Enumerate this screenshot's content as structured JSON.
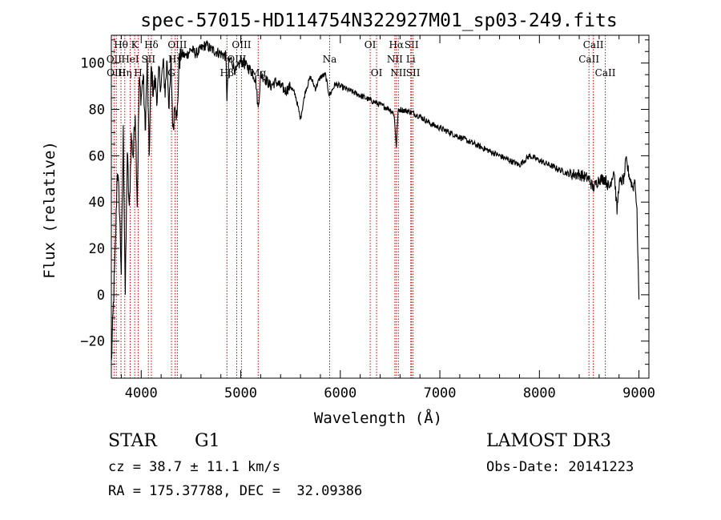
{
  "chart_data": {
    "type": "line",
    "title": "spec-57015-HD114754N322927M01_sp03-249.fits",
    "xlabel": "Wavelength (Å)",
    "ylabel": "Flux (relative)",
    "xlim": [
      3700,
      9100
    ],
    "ylim": [
      -36,
      112
    ],
    "x_ticks": [
      4000,
      5000,
      6000,
      7000,
      8000,
      9000
    ],
    "y_ticks": [
      -20,
      0,
      20,
      40,
      60,
      80,
      100
    ],
    "line_color": "#000000",
    "marker_color": "#cc0000",
    "series": [
      {
        "name": "flux",
        "x": [
          3700,
          3720,
          3740,
          3760,
          3780,
          3800,
          3820,
          3840,
          3860,
          3880,
          3900,
          3920,
          3940,
          3960,
          3980,
          4000,
          4020,
          4040,
          4060,
          4080,
          4100,
          4120,
          4140,
          4160,
          4180,
          4200,
          4220,
          4240,
          4260,
          4280,
          4300,
          4320,
          4340,
          4360,
          4380,
          4400,
          4450,
          4500,
          4550,
          4600,
          4650,
          4700,
          4750,
          4800,
          4850,
          4861,
          4880,
          4900,
          4950,
          5000,
          5050,
          5100,
          5150,
          5175,
          5200,
          5250,
          5300,
          5350,
          5400,
          5450,
          5500,
          5550,
          5600,
          5650,
          5700,
          5750,
          5800,
          5850,
          5890,
          5950,
          6000,
          6100,
          6200,
          6300,
          6400,
          6500,
          6540,
          6563,
          6580,
          6600,
          6700,
          6800,
          6900,
          7000,
          7100,
          7200,
          7300,
          7400,
          7500,
          7600,
          7700,
          7800,
          7900,
          8000,
          8100,
          8200,
          8300,
          8400,
          8500,
          8540,
          8600,
          8662,
          8700,
          8750,
          8780,
          8800,
          8850,
          8870,
          8900,
          8940,
          8960,
          8980,
          9000
        ],
        "y": [
          -30,
          -5,
          20,
          55,
          40,
          10,
          70,
          0,
          62,
          35,
          68,
          60,
          80,
          40,
          92,
          85,
          95,
          70,
          100,
          60,
          98,
          88,
          92,
          85,
          96,
          90,
          100,
          88,
          102,
          80,
          100,
          70,
          85,
          75,
          100,
          104,
          103,
          106,
          104,
          106,
          108,
          106,
          105,
          104,
          103,
          85,
          100,
          102,
          96,
          101,
          99,
          97,
          93,
          80,
          95,
          93,
          90,
          92,
          90,
          88,
          90,
          86,
          76,
          88,
          94,
          89,
          94,
          95,
          86,
          91,
          90,
          88,
          86,
          84,
          82,
          80,
          78,
          64,
          79,
          80,
          79,
          77,
          74,
          72,
          70,
          68,
          66,
          64,
          62,
          60,
          58,
          56,
          60,
          58,
          56,
          54,
          52,
          52,
          50,
          46,
          50,
          50,
          46,
          54,
          36,
          48,
          50,
          58,
          52,
          46,
          50,
          35,
          -2
        ]
      }
    ],
    "line_markers": [
      {
        "label": "Hθ",
        "x": 3797,
        "row": 0
      },
      {
        "label": "OII",
        "x": 3727,
        "row": 1
      },
      {
        "label": "OIII",
        "x": 3750,
        "row": 2
      },
      {
        "label": "K",
        "x": 3934,
        "row": 0
      },
      {
        "label": "HeI",
        "x": 3889,
        "row": 1
      },
      {
        "label": "Hη",
        "x": 3835,
        "row": 2
      },
      {
        "label": "H",
        "x": 3969,
        "row": 2
      },
      {
        "label": "Hδ",
        "x": 4102,
        "row": 0
      },
      {
        "label": "SII",
        "x": 4072,
        "row": 1
      },
      {
        "label": "OIII",
        "x": 4363,
        "row": 0
      },
      {
        "label": "Hγ",
        "x": 4341,
        "row": 1
      },
      {
        "label": "G",
        "x": 4304,
        "row": 2
      },
      {
        "label": "OIII",
        "x": 5007,
        "row": 0
      },
      {
        "label": "OIII",
        "x": 4959,
        "row": 1
      },
      {
        "label": "Hβ",
        "x": 4861,
        "row": 2
      },
      {
        "label": "Mg",
        "x": 5175,
        "row": 2
      },
      {
        "label": "Na",
        "x": 5893,
        "row": 1
      },
      {
        "label": "OI",
        "x": 6300,
        "row": 0
      },
      {
        "label": "OI",
        "x": 6364,
        "row": 2
      },
      {
        "label": "Hα",
        "x": 6563,
        "row": 0
      },
      {
        "label": "NII",
        "x": 6548,
        "row": 1
      },
      {
        "label": "NII",
        "x": 6583,
        "row": 2
      },
      {
        "label": "SII",
        "x": 6716,
        "row": 0
      },
      {
        "label": "Li",
        "x": 6708,
        "row": 1
      },
      {
        "label": "SII",
        "x": 6731,
        "row": 2
      },
      {
        "label": "CaII",
        "x": 8542,
        "row": 0
      },
      {
        "label": "CaII",
        "x": 8498,
        "row": 1
      },
      {
        "label": "CaII",
        "x": 8662,
        "row": 2
      }
    ]
  },
  "info": {
    "object_type": "STAR",
    "subclass": "G1",
    "survey": "LAMOST DR3",
    "cz": "cz = 38.7 ± 11.1 km/s",
    "obs_date": "Obs-Date: 20141223",
    "coords": "RA = 175.37788, DEC =  32.09386"
  }
}
